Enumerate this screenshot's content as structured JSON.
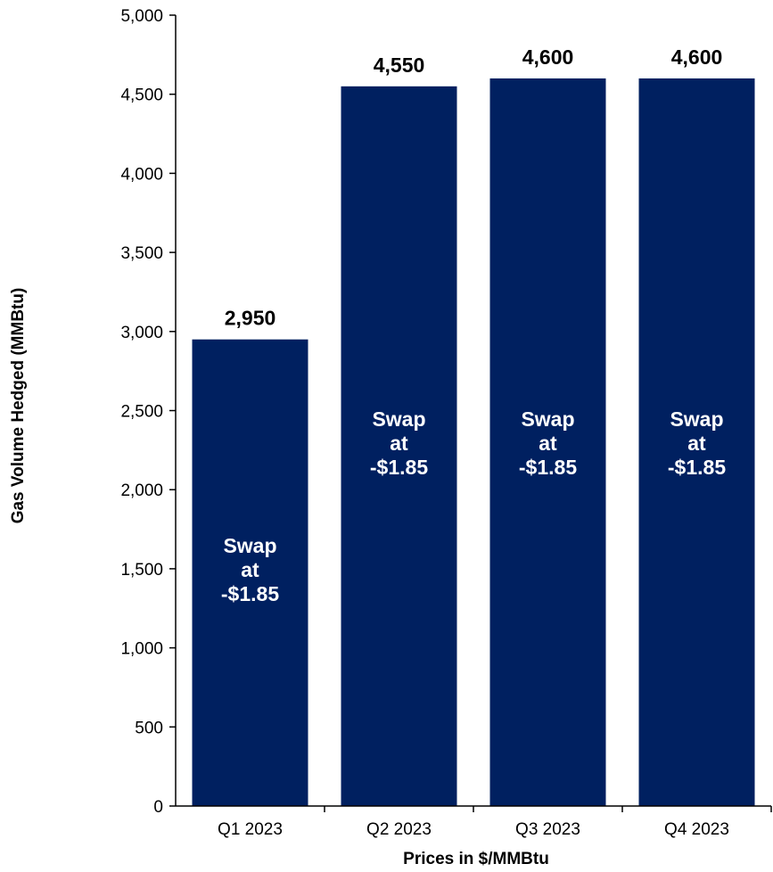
{
  "chart_data": {
    "type": "bar",
    "categories": [
      "Q1 2023",
      "Q2 2023",
      "Q3 2023",
      "Q4 2023"
    ],
    "values": [
      2950,
      4550,
      4600,
      4600
    ],
    "data_labels": [
      "2,950",
      "4,550",
      "4,600",
      "4,600"
    ],
    "bar_annotations": [
      [
        "Swap",
        "at",
        "-$1.85"
      ],
      [
        "Swap",
        "at",
        "-$1.85"
      ],
      [
        "Swap",
        "at",
        "-$1.85"
      ],
      [
        "Swap",
        "at",
        "-$1.85"
      ]
    ],
    "title": "",
    "xlabel": "Prices in $/MMBtu",
    "ylabel": "Gas Volume Hedged (MMBtu)",
    "ylim": [
      0,
      5000
    ],
    "yticks": [
      0,
      500,
      1000,
      1500,
      2000,
      2500,
      3000,
      3500,
      4000,
      4500,
      5000
    ],
    "ytick_labels": [
      "0",
      "500",
      "1,000",
      "1,500",
      "2,000",
      "2,500",
      "3,000",
      "3,500",
      "4,000",
      "4,500",
      "5,000"
    ],
    "grid": false,
    "legend": "none",
    "bar_color": "#002060",
    "inner_text_color": "#ffffff"
  }
}
